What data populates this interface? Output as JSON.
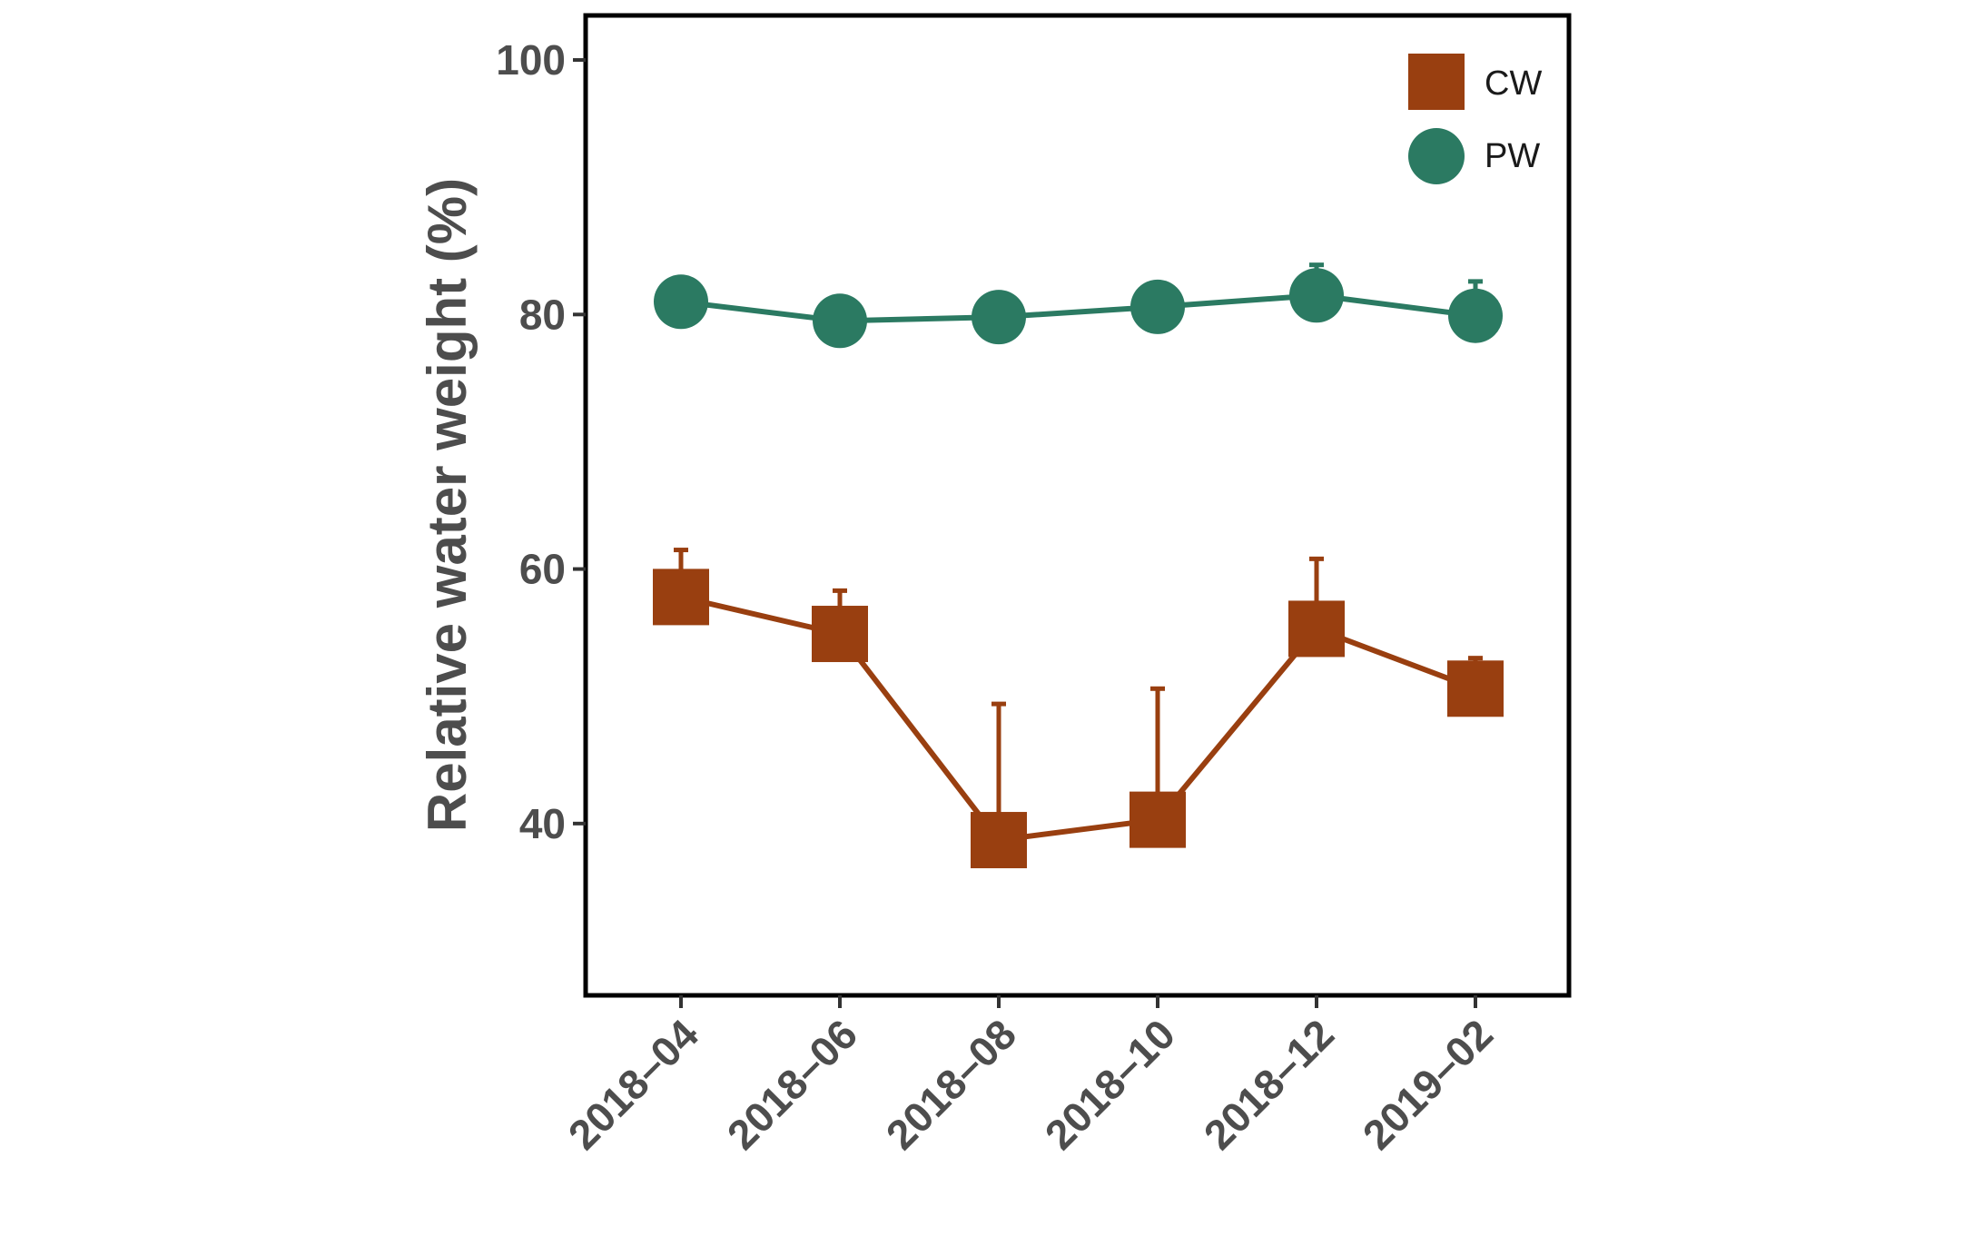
{
  "chart_data": {
    "type": "line",
    "title": "",
    "xlabel": "",
    "ylabel": "Relative water weight (%)",
    "categories": [
      "2018–04",
      "2018–06",
      "2018–08",
      "2018–10",
      "2018–12",
      "2019–02"
    ],
    "y_ticks": [
      "40",
      "60",
      "80",
      "100"
    ],
    "ylim": [
      26.5,
      103.5
    ],
    "grid": false,
    "legend_position": "top-right",
    "series": [
      {
        "name": "CW",
        "marker": "square",
        "color": "#993f10",
        "values": [
          57.8,
          54.9,
          38.7,
          40.3,
          55.3,
          50.6
        ],
        "error_upper": [
          61.5,
          58.3,
          49.4,
          50.6,
          60.8,
          53.0
        ]
      },
      {
        "name": "PW",
        "marker": "circle",
        "color": "#2b7a62",
        "values": [
          81.0,
          79.5,
          79.8,
          80.6,
          81.5,
          79.9
        ],
        "error_upper": [
          81.0,
          79.5,
          79.8,
          80.6,
          83.9,
          82.6
        ]
      }
    ]
  }
}
